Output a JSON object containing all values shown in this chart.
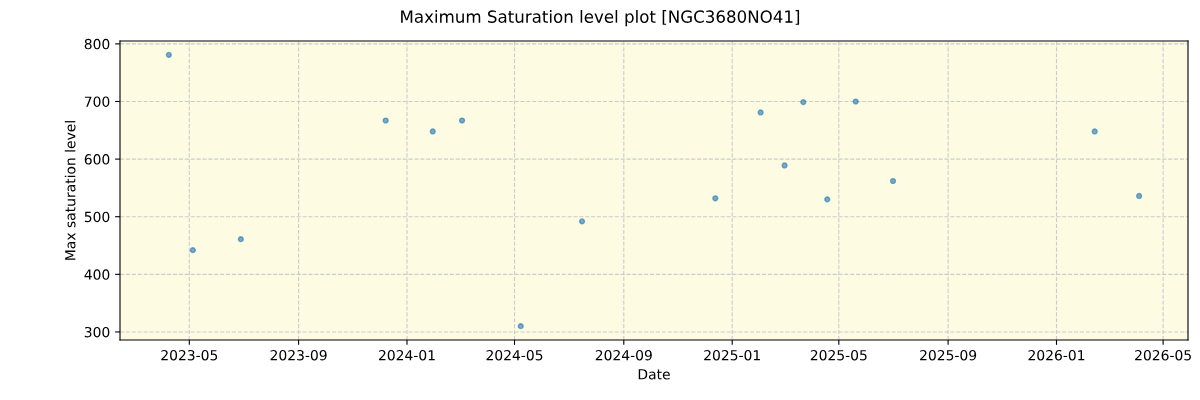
{
  "chart_data": {
    "type": "scatter",
    "title": "Maximum Saturation level plot [NGC3680NO41]",
    "xlabel": "Date",
    "ylabel": "Max saturation level",
    "x": [
      "2023-04-08",
      "2023-05-05",
      "2023-06-28",
      "2023-12-08",
      "2024-01-30",
      "2024-03-03",
      "2024-05-08",
      "2024-07-16",
      "2024-12-13",
      "2025-02-02",
      "2025-03-01",
      "2025-03-22",
      "2025-04-18",
      "2025-05-20",
      "2025-07-01",
      "2026-02-13",
      "2026-04-04"
    ],
    "series": [
      {
        "color": "#1f77b4",
        "values": [
          781,
          442,
          461,
          667,
          648,
          667,
          310,
          492,
          532,
          681,
          589,
          699,
          530,
          700,
          562,
          648,
          536
        ]
      }
    ],
    "xlim": [
      "2023-02-12",
      "2026-05-29"
    ],
    "xticks": [
      {
        "value": "2023-05-01",
        "label": "2023-05"
      },
      {
        "value": "2023-09-01",
        "label": "2023-09"
      },
      {
        "value": "2024-01-01",
        "label": "2024-01"
      },
      {
        "value": "2024-05-01",
        "label": "2024-05"
      },
      {
        "value": "2024-09-01",
        "label": "2024-09"
      },
      {
        "value": "2025-01-01",
        "label": "2025-01"
      },
      {
        "value": "2025-05-01",
        "label": "2025-05"
      },
      {
        "value": "2025-09-01",
        "label": "2025-09"
      },
      {
        "value": "2026-01-01",
        "label": "2026-01"
      },
      {
        "value": "2026-05-01",
        "label": "2026-05"
      }
    ],
    "ylim": [
      286,
      805
    ],
    "yticks": [
      300,
      400,
      500,
      600,
      700,
      800
    ],
    "grid": true,
    "marker": "circle"
  }
}
